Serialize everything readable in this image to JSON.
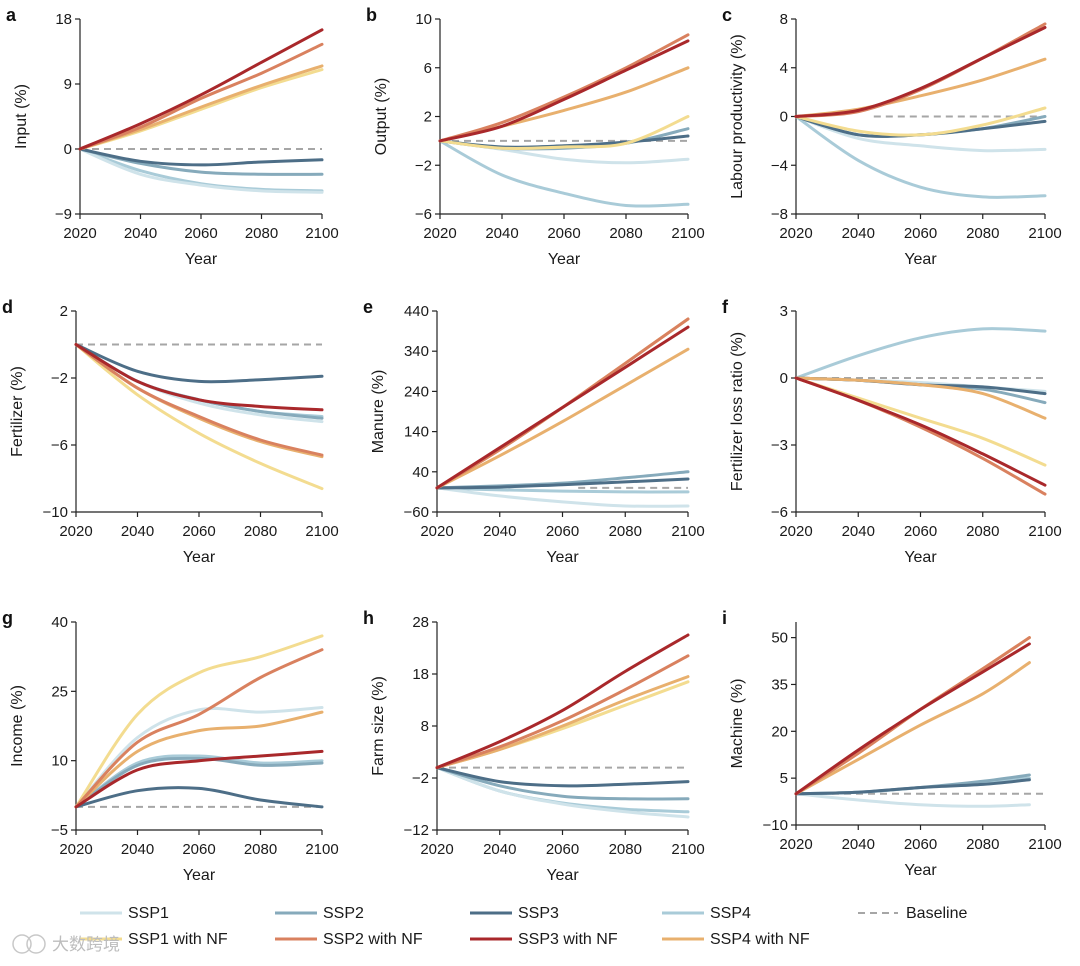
{
  "watermark": "大数跨境",
  "legend": [
    {
      "key": "ssp1",
      "label": "SSP1",
      "color": "#cfe3ea",
      "dash": false
    },
    {
      "key": "ssp2",
      "label": "SSP2",
      "color": "#86aabb",
      "dash": false
    },
    {
      "key": "ssp3",
      "label": "SSP3",
      "color": "#4d6e87",
      "dash": false
    },
    {
      "key": "ssp4",
      "label": "SSP4",
      "color": "#a9cbd8",
      "dash": false
    },
    {
      "key": "baseline",
      "label": "Baseline",
      "color": "#a6a6a6",
      "dash": true
    },
    {
      "key": "ssp1nf",
      "label": "SSP1 with NF",
      "color": "#f3dc90",
      "dash": false
    },
    {
      "key": "ssp2nf",
      "label": "SSP2 with NF",
      "color": "#d9815f",
      "dash": false
    },
    {
      "key": "ssp3nf",
      "label": "SSP3 with NF",
      "color": "#a9282b",
      "dash": false
    },
    {
      "key": "ssp4nf",
      "label": "SSP4 with NF",
      "color": "#e8b06e",
      "dash": false
    }
  ],
  "chart_data": [
    {
      "panel": "a",
      "type": "line",
      "xlabel": "Year",
      "ylabel": "Input (%)",
      "ylim": [
        -9,
        18
      ],
      "yticks": [
        "18",
        "9",
        "0",
        "-9"
      ],
      "xticks": [
        "2020",
        "2040",
        "2060",
        "2080",
        "2100"
      ],
      "x": [
        2020,
        2040,
        2060,
        2080,
        2100
      ],
      "baseline": {
        "value": 0,
        "from": 2020
      },
      "series": [
        {
          "key": "ssp1",
          "name": "SSP1",
          "values": [
            0,
            -3.5,
            -5,
            -5.8,
            -6
          ]
        },
        {
          "key": "ssp2",
          "name": "SSP2",
          "values": [
            0,
            -2,
            -3.2,
            -3.5,
            -3.5
          ]
        },
        {
          "key": "ssp3",
          "name": "SSP3",
          "values": [
            0,
            -1.7,
            -2.2,
            -1.8,
            -1.5
          ]
        },
        {
          "key": "ssp4",
          "name": "SSP4",
          "values": [
            0,
            -3,
            -4.8,
            -5.6,
            -5.8
          ]
        },
        {
          "key": "ssp1nf",
          "name": "SSP1 with NF",
          "values": [
            0,
            2.5,
            5.5,
            8.5,
            11
          ]
        },
        {
          "key": "ssp2nf",
          "name": "SSP2 with NF",
          "values": [
            0,
            3,
            7,
            10.5,
            14.5
          ]
        },
        {
          "key": "ssp3nf",
          "name": "SSP3 with NF",
          "values": [
            0,
            3.5,
            7.5,
            12,
            16.5
          ]
        },
        {
          "key": "ssp4nf",
          "name": "SSP4 with NF",
          "values": [
            0,
            2.7,
            5.8,
            8.8,
            11.5
          ]
        }
      ]
    },
    {
      "panel": "b",
      "type": "line",
      "xlabel": "Year",
      "ylabel": "Output (%)",
      "ylim": [
        -6,
        10
      ],
      "yticks": [
        "10",
        "6",
        "2",
        "-2",
        "-6"
      ],
      "xticks": [
        "2020",
        "2040",
        "2060",
        "2080",
        "2100"
      ],
      "x": [
        2020,
        2040,
        2060,
        2080,
        2100
      ],
      "baseline": {
        "value": 0,
        "from": 2020
      },
      "series": [
        {
          "key": "ssp1",
          "name": "SSP1",
          "values": [
            0,
            -0.7,
            -1.5,
            -1.8,
            -1.5
          ]
        },
        {
          "key": "ssp2",
          "name": "SSP2",
          "values": [
            0,
            -0.6,
            -0.6,
            -0.2,
            1
          ]
        },
        {
          "key": "ssp3",
          "name": "SSP3",
          "values": [
            0,
            -0.5,
            -0.4,
            -0.1,
            0.4
          ]
        },
        {
          "key": "ssp4",
          "name": "SSP4",
          "values": [
            0,
            -2.8,
            -4.3,
            -5.3,
            -5.2
          ]
        },
        {
          "key": "ssp1nf",
          "name": "SSP1 with NF",
          "values": [
            0,
            -0.6,
            -0.5,
            -0.2,
            2
          ]
        },
        {
          "key": "ssp2nf",
          "name": "SSP2 with NF",
          "values": [
            0,
            1.5,
            3.6,
            6,
            8.7
          ]
        },
        {
          "key": "ssp3nf",
          "name": "SSP3 with NF",
          "values": [
            0,
            1.2,
            3.4,
            5.8,
            8.2
          ]
        },
        {
          "key": "ssp4nf",
          "name": "SSP4 with NF",
          "values": [
            0,
            1.2,
            2.5,
            4,
            6
          ]
        }
      ]
    },
    {
      "panel": "c",
      "type": "line",
      "xlabel": "Year",
      "ylabel": "Labour productivity (%)",
      "ylim": [
        -8,
        8
      ],
      "yticks": [
        "8",
        "4",
        "0",
        "-4",
        "-8"
      ],
      "xticks": [
        "2020",
        "2040",
        "2060",
        "2080",
        "2100"
      ],
      "x": [
        2020,
        2040,
        2060,
        2080,
        2100
      ],
      "baseline": {
        "value": 0,
        "from": 2045
      },
      "series": [
        {
          "key": "ssp1",
          "name": "SSP1",
          "values": [
            0,
            -1.8,
            -2.4,
            -2.8,
            -2.7
          ]
        },
        {
          "key": "ssp2",
          "name": "SSP2",
          "values": [
            0,
            -1.5,
            -1.5,
            -1,
            0
          ]
        },
        {
          "key": "ssp3",
          "name": "SSP3",
          "values": [
            0,
            -1.5,
            -1.5,
            -1,
            -0.4
          ]
        },
        {
          "key": "ssp4",
          "name": "SSP4",
          "values": [
            0,
            -3.6,
            -5.8,
            -6.6,
            -6.5
          ]
        },
        {
          "key": "ssp1nf",
          "name": "SSP1 with NF",
          "values": [
            0,
            -1.2,
            -1.5,
            -0.7,
            0.7
          ]
        },
        {
          "key": "ssp2nf",
          "name": "SSP2 with NF",
          "values": [
            0,
            0.4,
            2.2,
            4.8,
            7.6
          ]
        },
        {
          "key": "ssp3nf",
          "name": "SSP3 with NF",
          "values": [
            0,
            0.5,
            2.3,
            4.8,
            7.3
          ]
        },
        {
          "key": "ssp4nf",
          "name": "SSP4 with NF",
          "values": [
            0,
            0.6,
            1.7,
            3,
            4.7
          ]
        }
      ]
    },
    {
      "panel": "d",
      "type": "line",
      "xlabel": "Year",
      "ylabel": "Fertilizer (%)",
      "ylim": [
        -10,
        2
      ],
      "yticks": [
        "2",
        "-2",
        "-6",
        "-10"
      ],
      "xticks": [
        "2020",
        "2040",
        "2060",
        "2080",
        "2100"
      ],
      "x": [
        2020,
        2040,
        2060,
        2080,
        2100
      ],
      "baseline": {
        "value": 0,
        "from": 2020
      },
      "series": [
        {
          "key": "ssp1",
          "name": "SSP1",
          "values": [
            0,
            -2.2,
            -3.5,
            -4.2,
            -4.6
          ]
        },
        {
          "key": "ssp2",
          "name": "SSP2",
          "values": [
            0,
            -2.2,
            -3.3,
            -4,
            -4.4
          ]
        },
        {
          "key": "ssp3",
          "name": "SSP3",
          "values": [
            0,
            -1.6,
            -2.2,
            -2.1,
            -1.9
          ]
        },
        {
          "key": "ssp4",
          "name": "SSP4",
          "values": [
            0,
            -2.2,
            -3.3,
            -4,
            -4.3
          ]
        },
        {
          "key": "ssp1nf",
          "name": "SSP1 with NF",
          "values": [
            0,
            -3,
            -5.3,
            -7.1,
            -8.6
          ]
        },
        {
          "key": "ssp2nf",
          "name": "SSP2 with NF",
          "values": [
            0,
            -2.6,
            -4.3,
            -5.7,
            -6.6
          ]
        },
        {
          "key": "ssp3nf",
          "name": "SSP3 with NF",
          "values": [
            0,
            -2.2,
            -3.3,
            -3.7,
            -3.9
          ]
        },
        {
          "key": "ssp4nf",
          "name": "SSP4 with NF",
          "values": [
            0,
            -2.6,
            -4.4,
            -5.8,
            -6.7
          ]
        }
      ]
    },
    {
      "panel": "e",
      "type": "line",
      "xlabel": "Year",
      "ylabel": "Manure (%)",
      "ylim": [
        -60,
        440
      ],
      "yticks": [
        "440",
        "340",
        "240",
        "140",
        "40",
        "-60"
      ],
      "xticks": [
        "2020",
        "2040",
        "2060",
        "2080",
        "2100"
      ],
      "x": [
        2020,
        2040,
        2060,
        2080,
        2100
      ],
      "baseline": {
        "value": 0,
        "from": 2065
      },
      "series": [
        {
          "key": "ssp1",
          "name": "SSP1",
          "values": [
            0,
            -20,
            -35,
            -45,
            -45
          ]
        },
        {
          "key": "ssp2",
          "name": "SSP2",
          "values": [
            0,
            5,
            12,
            25,
            40
          ]
        },
        {
          "key": "ssp3",
          "name": "SSP3",
          "values": [
            0,
            2,
            8,
            15,
            22
          ]
        },
        {
          "key": "ssp4",
          "name": "SSP4",
          "values": [
            0,
            -5,
            -8,
            -10,
            -10
          ]
        },
        {
          "key": "ssp1nf",
          "name": "SSP1 with NF",
          "values": [
            0,
            95,
            200,
            310,
            420
          ]
        },
        {
          "key": "ssp2nf",
          "name": "SSP2 with NF",
          "values": [
            0,
            95,
            200,
            310,
            420
          ]
        },
        {
          "key": "ssp3nf",
          "name": "SSP3 with NF",
          "values": [
            0,
            100,
            200,
            300,
            400
          ]
        },
        {
          "key": "ssp4nf",
          "name": "SSP4 with NF",
          "values": [
            0,
            80,
            165,
            255,
            345
          ]
        }
      ]
    },
    {
      "panel": "f",
      "type": "line",
      "xlabel": "Year",
      "ylabel": "Fertilizer loss ratio (%)",
      "ylim": [
        -6,
        3
      ],
      "yticks": [
        "3",
        "0",
        "-3",
        "-6"
      ],
      "xticks": [
        "2020",
        "2040",
        "2060",
        "2080",
        "2100"
      ],
      "x": [
        2020,
        2040,
        2060,
        2080,
        2100
      ],
      "baseline": {
        "value": 0,
        "from": 2020
      },
      "series": [
        {
          "key": "ssp1",
          "name": "SSP1",
          "values": [
            0,
            -0.1,
            -0.2,
            -0.4,
            -0.6
          ]
        },
        {
          "key": "ssp2",
          "name": "SSP2",
          "values": [
            0,
            -0.1,
            -0.3,
            -0.5,
            -1.1
          ]
        },
        {
          "key": "ssp3",
          "name": "SSP3",
          "values": [
            0,
            -0.1,
            -0.3,
            -0.4,
            -0.7
          ]
        },
        {
          "key": "ssp4",
          "name": "SSP4",
          "values": [
            0,
            1,
            1.8,
            2.2,
            2.1
          ]
        },
        {
          "key": "ssp1nf",
          "name": "SSP1 with NF",
          "values": [
            0,
            -0.9,
            -1.8,
            -2.7,
            -3.9
          ]
        },
        {
          "key": "ssp2nf",
          "name": "SSP2 with NF",
          "values": [
            0,
            -1,
            -2.2,
            -3.6,
            -5.2
          ]
        },
        {
          "key": "ssp3nf",
          "name": "SSP3 with NF",
          "values": [
            0,
            -1,
            -2.1,
            -3.4,
            -4.8
          ]
        },
        {
          "key": "ssp4nf",
          "name": "SSP4 with NF",
          "values": [
            0,
            -0.1,
            -0.3,
            -0.7,
            -1.8
          ]
        }
      ]
    },
    {
      "panel": "g",
      "type": "line",
      "xlabel": "Year",
      "ylabel": "Income (%)",
      "ylim": [
        -5,
        40
      ],
      "yticks": [
        "40",
        "25",
        "10",
        "-5"
      ],
      "xticks": [
        "2020",
        "2040",
        "2060",
        "2080",
        "2100"
      ],
      "x": [
        2020,
        2040,
        2060,
        2080,
        2100
      ],
      "baseline": {
        "value": 0,
        "from": 2020
      },
      "series": [
        {
          "key": "ssp1",
          "name": "SSP1",
          "values": [
            0,
            15,
            21,
            20.5,
            21.5
          ]
        },
        {
          "key": "ssp2",
          "name": "SSP2",
          "values": [
            0,
            9,
            10.5,
            9,
            9.5
          ]
        },
        {
          "key": "ssp3",
          "name": "SSP3",
          "values": [
            0,
            3.5,
            4,
            1.5,
            0
          ]
        },
        {
          "key": "ssp4",
          "name": "SSP4",
          "values": [
            0,
            9.5,
            11,
            9.5,
            10
          ]
        },
        {
          "key": "ssp1nf",
          "name": "SSP1 with NF",
          "values": [
            0,
            20,
            29,
            32.5,
            37
          ]
        },
        {
          "key": "ssp2nf",
          "name": "SSP2 with NF",
          "values": [
            0,
            14,
            20,
            28,
            34
          ]
        },
        {
          "key": "ssp3nf",
          "name": "SSP3 with NF",
          "values": [
            0,
            8,
            10,
            11,
            12
          ]
        },
        {
          "key": "ssp4nf",
          "name": "SSP4 with NF",
          "values": [
            0,
            12,
            16.5,
            17.5,
            20.5
          ]
        }
      ]
    },
    {
      "panel": "h",
      "type": "line",
      "xlabel": "Year",
      "ylabel": "Farm size (%)",
      "ylim": [
        -12,
        28
      ],
      "yticks": [
        "28",
        "18",
        "8",
        "-2",
        "-12"
      ],
      "xticks": [
        "2020",
        "2040",
        "2060",
        "2080",
        "2100"
      ],
      "x": [
        2020,
        2040,
        2060,
        2080,
        2100
      ],
      "baseline": {
        "value": 0,
        "from": 2020
      },
      "series": [
        {
          "key": "ssp1",
          "name": "SSP1",
          "values": [
            0,
            -4.5,
            -7,
            -8.5,
            -9.5
          ]
        },
        {
          "key": "ssp2",
          "name": "SSP2",
          "values": [
            0,
            -3.5,
            -5.5,
            -6,
            -6
          ]
        },
        {
          "key": "ssp3",
          "name": "SSP3",
          "values": [
            0,
            -2.7,
            -3.5,
            -3.2,
            -2.7
          ]
        },
        {
          "key": "ssp4",
          "name": "SSP4",
          "values": [
            0,
            -4.5,
            -6.8,
            -8,
            -8.5
          ]
        },
        {
          "key": "ssp1nf",
          "name": "SSP1 with NF",
          "values": [
            0,
            3.5,
            7.5,
            12,
            16.5
          ]
        },
        {
          "key": "ssp2nf",
          "name": "SSP2 with NF",
          "values": [
            0,
            4,
            9,
            15,
            21.5
          ]
        },
        {
          "key": "ssp3nf",
          "name": "SSP3 with NF",
          "values": [
            0,
            5,
            11,
            18.5,
            25.5
          ]
        },
        {
          "key": "ssp4nf",
          "name": "SSP4 with NF",
          "values": [
            0,
            3.5,
            8,
            13,
            17.5
          ]
        }
      ]
    },
    {
      "panel": "i",
      "type": "line",
      "xlabel": "Year",
      "ylabel": "Machine (%)",
      "ylim": [
        -10,
        55
      ],
      "yticks": [
        "50",
        "35",
        "20",
        "5",
        "-10"
      ],
      "xticks": [
        "2020",
        "2040",
        "2060",
        "2080",
        "2100"
      ],
      "x": [
        2020,
        2040,
        2060,
        2080,
        2095
      ],
      "baseline": {
        "value": 0,
        "from": 2020
      },
      "series": [
        {
          "key": "ssp1",
          "name": "SSP1",
          "values": [
            0,
            -2,
            -3.5,
            -4,
            -3.5
          ]
        },
        {
          "key": "ssp2",
          "name": "SSP2",
          "values": [
            0,
            0.5,
            2,
            4,
            6
          ]
        },
        {
          "key": "ssp3",
          "name": "SSP3",
          "values": [
            0,
            0.5,
            2,
            3,
            4.5
          ]
        },
        {
          "key": "ssp4",
          "name": "SSP4",
          "values": [
            0,
            0.5,
            2,
            3.5,
            5
          ]
        },
        {
          "key": "ssp1nf",
          "name": "SSP1 with NF",
          "values": [
            0,
            13,
            27,
            40,
            50
          ]
        },
        {
          "key": "ssp2nf",
          "name": "SSP2 with NF",
          "values": [
            0,
            13,
            27,
            40,
            50
          ]
        },
        {
          "key": "ssp3nf",
          "name": "SSP3 with NF",
          "values": [
            0,
            14,
            27,
            39,
            48
          ]
        },
        {
          "key": "ssp4nf",
          "name": "SSP4 with NF",
          "values": [
            0,
            11,
            22,
            32,
            42
          ]
        }
      ]
    }
  ]
}
